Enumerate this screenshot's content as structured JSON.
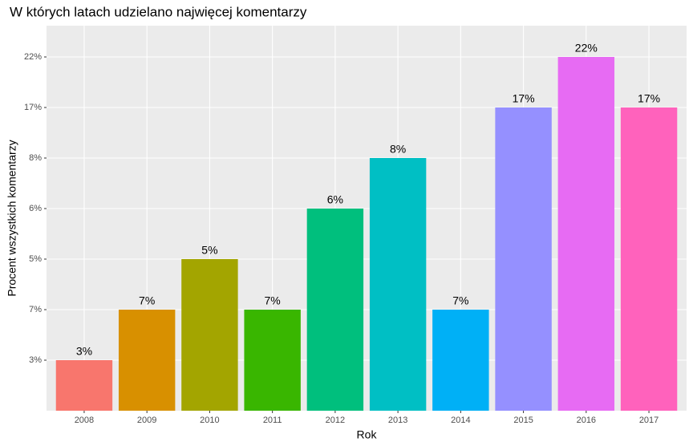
{
  "chart_data": {
    "type": "bar",
    "title": "W których latach udzielano najwięcej komentarzy",
    "x_label": "Rok",
    "y_label": "Procent wszystkich komentarzy",
    "categories": [
      "2008",
      "2009",
      "2010",
      "2011",
      "2012",
      "2013",
      "2014",
      "2015",
      "2016",
      "2017"
    ],
    "values": [
      3,
      7,
      5,
      7,
      6,
      8,
      7,
      17,
      22,
      17
    ],
    "value_labels": [
      "3%",
      "7%",
      "5%",
      "7%",
      "6%",
      "8%",
      "7%",
      "17%",
      "22%",
      "17%"
    ],
    "colors": [
      "#F8766D",
      "#D89000",
      "#A3A500",
      "#39B600",
      "#00BF7D",
      "#00BFC4",
      "#00B0F6",
      "#9590FF",
      "#E76BF3",
      "#FF62BC"
    ],
    "y_categories": [
      "3%",
      "7%",
      "5%",
      "6%",
      "8%",
      "17%",
      "22%"
    ],
    "grid": true
  }
}
